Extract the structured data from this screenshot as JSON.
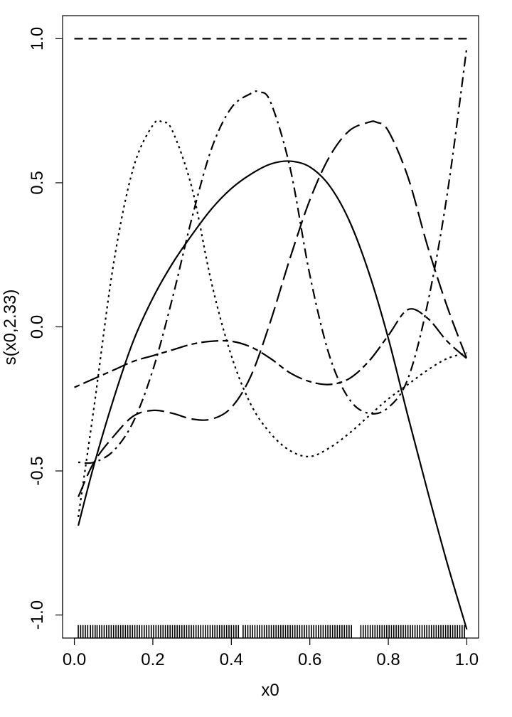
{
  "chart_data": {
    "type": "line",
    "title": "",
    "xlabel": "x0",
    "ylabel": "s(x0,2.33)",
    "xlim": [
      -0.03,
      1.03
    ],
    "ylim": [
      -1.08,
      1.08
    ],
    "xticks": [
      0.0,
      0.2,
      0.4,
      0.6,
      0.8,
      1.0
    ],
    "xtick_labels": [
      "0.0",
      "0.2",
      "0.4",
      "0.6",
      "0.8",
      "1.0"
    ],
    "yticks": [
      -1.0,
      -0.5,
      0.0,
      0.5,
      1.0
    ],
    "ytick_labels": [
      "-1.0",
      "-0.5",
      "0.0",
      "0.5",
      "1.0"
    ],
    "grid": false,
    "legend": "none",
    "series": [
      {
        "linestyle": "solid",
        "x": [
          0.01,
          0.05,
          0.1,
          0.15,
          0.2,
          0.25,
          0.3,
          0.35,
          0.4,
          0.45,
          0.5,
          0.55,
          0.6,
          0.65,
          0.7,
          0.75,
          0.8,
          0.85,
          0.9,
          0.95,
          1.0
        ],
        "y": [
          -0.69,
          -0.48,
          -0.25,
          -0.05,
          0.1,
          0.22,
          0.32,
          0.41,
          0.48,
          0.53,
          0.565,
          0.575,
          0.555,
          0.49,
          0.37,
          0.19,
          -0.04,
          -0.31,
          -0.57,
          -0.82,
          -1.05
        ]
      },
      {
        "linestyle": "dashed",
        "x": [
          0.0,
          1.0
        ],
        "y": [
          1.0,
          1.0
        ]
      },
      {
        "linestyle": "dotted",
        "x": [
          0.01,
          0.05,
          0.1,
          0.15,
          0.2,
          0.225,
          0.25,
          0.3,
          0.35,
          0.4,
          0.45,
          0.5,
          0.55,
          0.6,
          0.65,
          0.7,
          0.75,
          0.8,
          0.85,
          0.9,
          0.95,
          1.0
        ],
        "y": [
          -0.66,
          -0.28,
          0.22,
          0.55,
          0.7,
          0.71,
          0.68,
          0.48,
          0.15,
          -0.1,
          -0.27,
          -0.37,
          -0.43,
          -0.45,
          -0.42,
          -0.37,
          -0.31,
          -0.25,
          -0.2,
          -0.15,
          -0.11,
          -0.09
        ]
      },
      {
        "linestyle": "dotdash",
        "x": [
          0.01,
          0.05,
          0.1,
          0.15,
          0.2,
          0.25,
          0.3,
          0.35,
          0.4,
          0.45,
          0.47,
          0.5,
          0.55,
          0.6,
          0.65,
          0.7,
          0.75,
          0.8,
          0.85,
          0.9,
          0.95,
          1.0
        ],
        "y": [
          -0.47,
          -0.47,
          -0.43,
          -0.33,
          -0.15,
          0.1,
          0.38,
          0.62,
          0.76,
          0.81,
          0.815,
          0.78,
          0.55,
          0.18,
          -0.1,
          -0.25,
          -0.3,
          -0.28,
          -0.18,
          0.08,
          0.46,
          0.97
        ]
      },
      {
        "linestyle": "longdash",
        "x": [
          0.01,
          0.05,
          0.1,
          0.15,
          0.2,
          0.25,
          0.3,
          0.35,
          0.4,
          0.45,
          0.5,
          0.55,
          0.6,
          0.65,
          0.7,
          0.75,
          0.77,
          0.8,
          0.85,
          0.9,
          0.95,
          1.0
        ],
        "y": [
          -0.59,
          -0.47,
          -0.38,
          -0.31,
          -0.29,
          -0.3,
          -0.32,
          -0.32,
          -0.28,
          -0.17,
          0.02,
          0.24,
          0.44,
          0.59,
          0.68,
          0.71,
          0.71,
          0.68,
          0.52,
          0.28,
          0.07,
          -0.11
        ]
      },
      {
        "linestyle": "twodash",
        "x": [
          0.0,
          0.05,
          0.1,
          0.15,
          0.2,
          0.25,
          0.3,
          0.35,
          0.4,
          0.45,
          0.5,
          0.55,
          0.6,
          0.65,
          0.7,
          0.75,
          0.8,
          0.85,
          0.9,
          0.95,
          1.0
        ],
        "y": [
          -0.21,
          -0.18,
          -0.15,
          -0.12,
          -0.1,
          -0.08,
          -0.06,
          -0.05,
          -0.05,
          -0.07,
          -0.11,
          -0.16,
          -0.19,
          -0.2,
          -0.18,
          -0.12,
          -0.03,
          0.06,
          0.03,
          -0.05,
          -0.11
        ]
      }
    ],
    "rug": [
      0.01,
      0.016,
      0.022,
      0.028,
      0.034,
      0.041,
      0.047,
      0.053,
      0.058,
      0.064,
      0.07,
      0.076,
      0.082,
      0.088,
      0.094,
      0.1,
      0.106,
      0.112,
      0.118,
      0.124,
      0.13,
      0.136,
      0.142,
      0.148,
      0.154,
      0.16,
      0.166,
      0.172,
      0.178,
      0.184,
      0.19,
      0.196,
      0.202,
      0.208,
      0.214,
      0.22,
      0.226,
      0.232,
      0.238,
      0.244,
      0.25,
      0.256,
      0.262,
      0.268,
      0.274,
      0.28,
      0.286,
      0.292,
      0.298,
      0.304,
      0.31,
      0.316,
      0.322,
      0.328,
      0.334,
      0.34,
      0.346,
      0.352,
      0.358,
      0.364,
      0.37,
      0.376,
      0.382,
      0.388,
      0.394,
      0.4,
      0.406,
      0.412,
      0.418,
      0.43,
      0.436,
      0.442,
      0.448,
      0.454,
      0.46,
      0.466,
      0.472,
      0.478,
      0.484,
      0.49,
      0.496,
      0.502,
      0.508,
      0.514,
      0.52,
      0.526,
      0.532,
      0.538,
      0.544,
      0.55,
      0.556,
      0.562,
      0.568,
      0.574,
      0.58,
      0.586,
      0.592,
      0.598,
      0.604,
      0.61,
      0.616,
      0.622,
      0.628,
      0.634,
      0.64,
      0.646,
      0.652,
      0.658,
      0.664,
      0.67,
      0.676,
      0.682,
      0.688,
      0.694,
      0.7,
      0.706,
      0.73,
      0.736,
      0.742,
      0.748,
      0.754,
      0.76,
      0.766,
      0.772,
      0.778,
      0.784,
      0.79,
      0.796,
      0.802,
      0.808,
      0.814,
      0.82,
      0.826,
      0.832,
      0.838,
      0.844,
      0.85,
      0.856,
      0.862,
      0.868,
      0.874,
      0.88,
      0.886,
      0.892,
      0.898,
      0.904,
      0.91,
      0.916,
      0.922,
      0.928,
      0.934,
      0.94,
      0.946,
      0.952,
      0.958,
      0.964,
      0.97,
      0.976,
      0.982,
      0.988,
      0.994
    ]
  }
}
